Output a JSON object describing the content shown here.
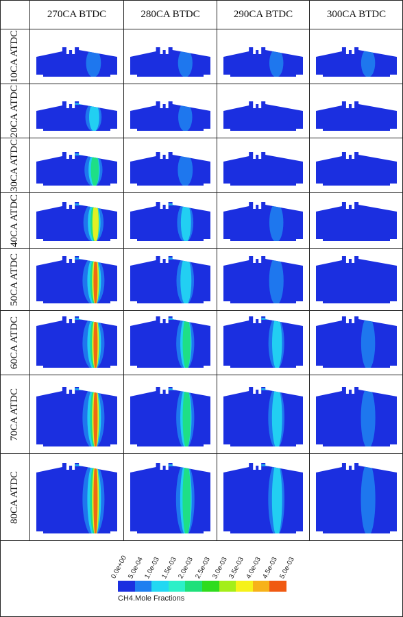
{
  "figure": {
    "column_headers": [
      "270CA BTDC",
      "280CA BTDC",
      "290CA BTDC",
      "300CA BTDC"
    ],
    "row_headers": [
      "10CA ATDC",
      "20CA ATDC",
      "30CA ATDC",
      "40CA ATDC",
      "50CA ATDC",
      "60CA ATDC",
      "70CA ATDC",
      "80CA ATDC"
    ]
  },
  "legend": {
    "title": "CH4.Mole Fractions",
    "ticks": [
      "0.0e+00",
      "5.0e-04",
      "1.0e-03",
      "1.5e-03",
      "2.0e-03",
      "2.5e-03",
      "3.0e-03",
      "3.5e-03",
      "4.0e-03",
      "4.5e-03",
      "5.0e-03"
    ],
    "colors": [
      "#1b2fe0",
      "#1f7ff0",
      "#22d8f2",
      "#2cf0c8",
      "#1ee07a",
      "#2fdc1e",
      "#a4ee1a",
      "#f6f21a",
      "#f7b21a",
      "#f05a12"
    ]
  }
}
